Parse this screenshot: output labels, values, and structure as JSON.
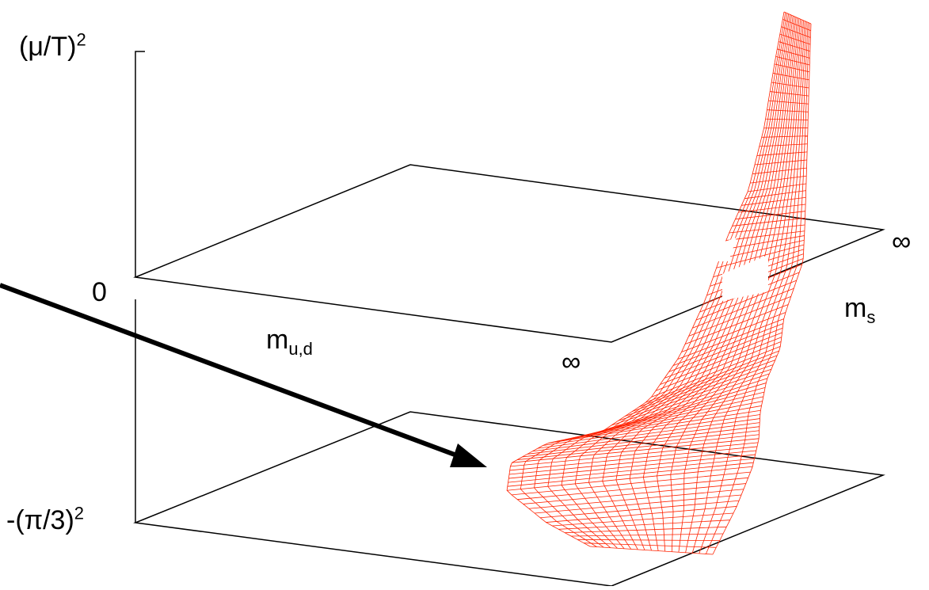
{
  "axes": {
    "vertical": {
      "top_label_base": "(μ/T)",
      "top_label_exp": "2",
      "zero_label": "0",
      "bottom_label_base": "-(π/3)",
      "bottom_label_exp": "2"
    },
    "mud": {
      "base": "m",
      "sub": "u,d"
    },
    "ms": {
      "base": "m",
      "sub": "s"
    },
    "infinity_front": "∞",
    "infinity_right": "∞"
  },
  "colors": {
    "surface": "#ff2200",
    "lines": "#000000"
  }
}
